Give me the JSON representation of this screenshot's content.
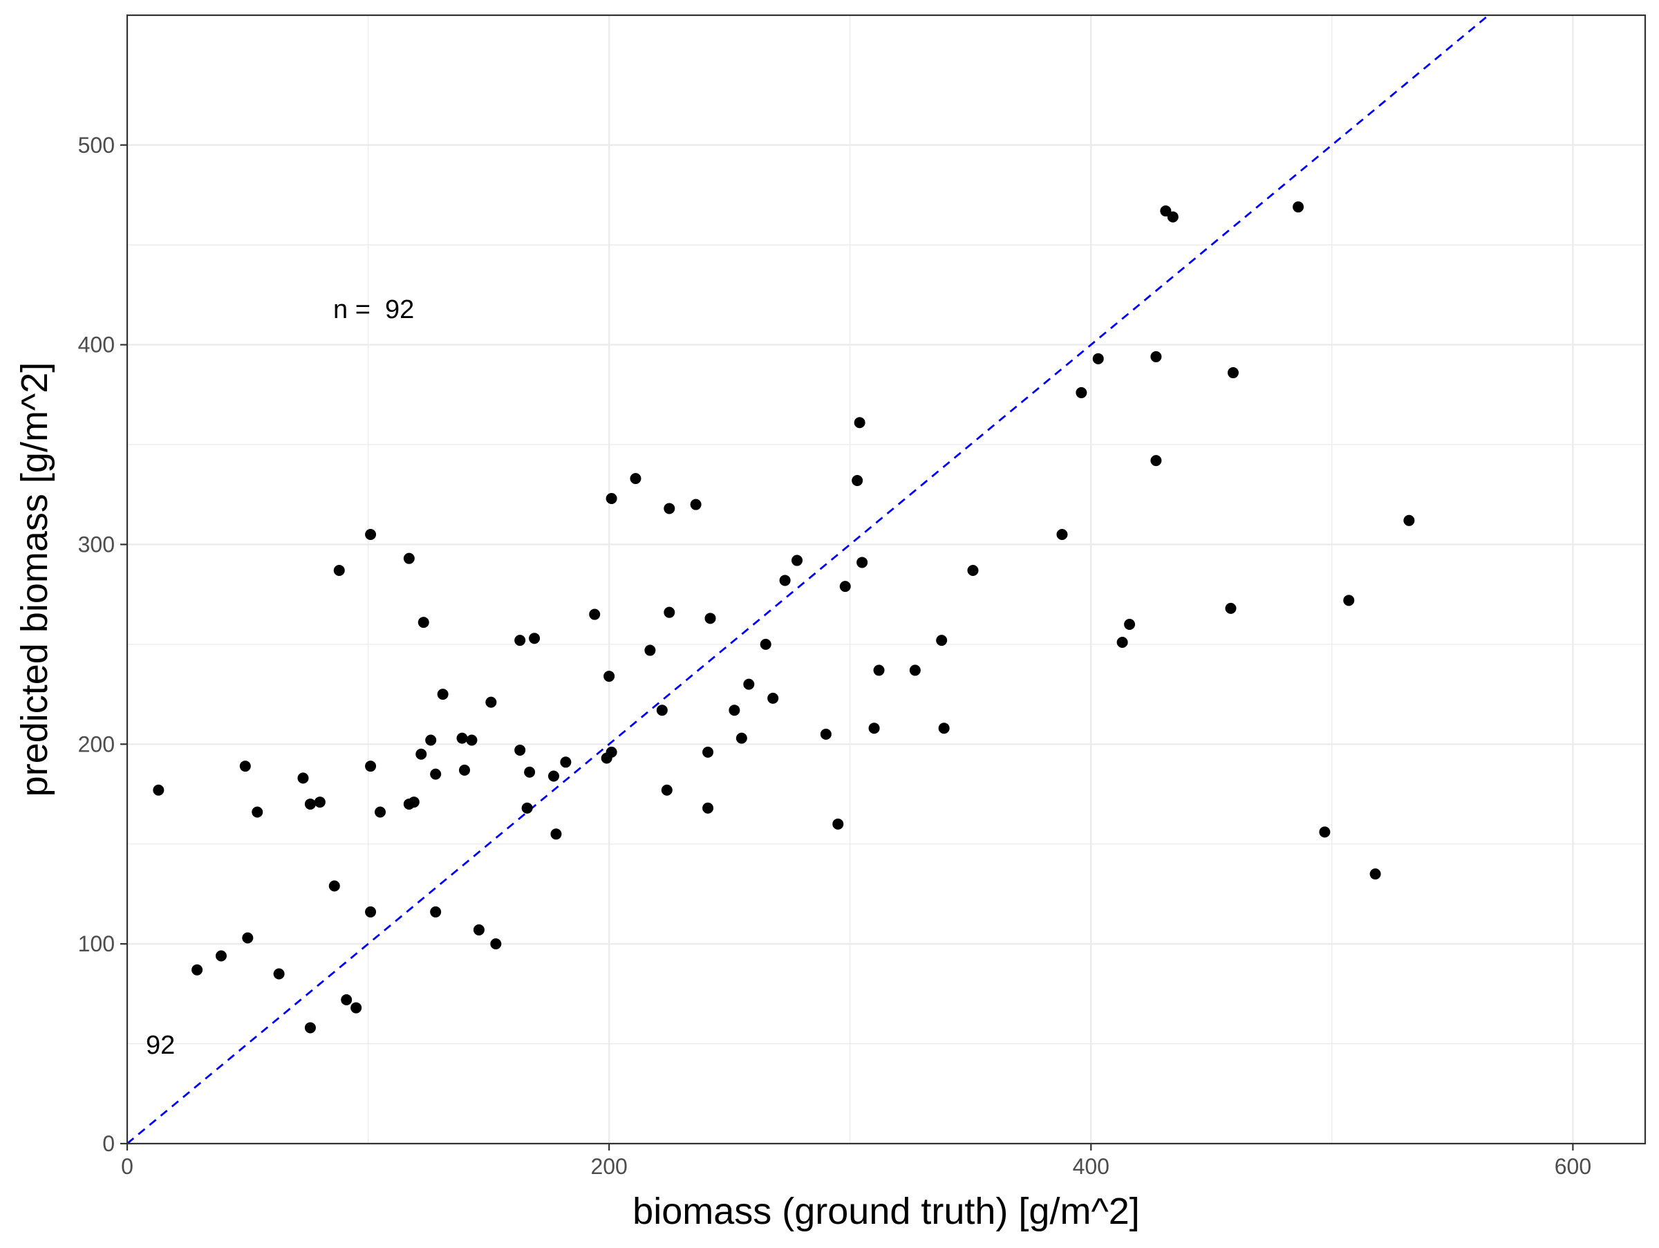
{
  "chart_data": {
    "type": "scatter",
    "title": "",
    "xlabel": "biomass (ground truth) [g/m^2]",
    "ylabel": "predicted biomass [g/m^2]",
    "xlim": [
      0,
      630
    ],
    "ylim": [
      0,
      565
    ],
    "x_ticks": [
      0,
      200,
      400,
      600
    ],
    "y_ticks": [
      0,
      100,
      200,
      300,
      400,
      500
    ],
    "x_minor_ticks": [
      100,
      300,
      500
    ],
    "y_minor_ticks": [
      50,
      150,
      250,
      350,
      450
    ],
    "x_tick_labels": [
      "0",
      "200",
      "400",
      "600"
    ],
    "y_tick_labels": [
      "0",
      "100",
      "200",
      "300",
      "400",
      "500"
    ],
    "grid": true,
    "annotations": [
      {
        "text": "n =  92",
        "x": 95,
        "y": 420
      },
      {
        "text": "92",
        "x": 16,
        "y": 50
      }
    ],
    "reference_line": {
      "type": "identity",
      "style": "dashed",
      "color": "#0000ff"
    },
    "colors": {
      "points": "#000000",
      "grid": "#ebebeb",
      "panel_border": "#333333",
      "reference_line": "#0000ff"
    },
    "series": [
      {
        "points": [
          [
            13,
            177
          ],
          [
            29,
            87
          ],
          [
            39,
            94
          ],
          [
            49,
            189
          ],
          [
            50,
            103
          ],
          [
            54,
            166
          ],
          [
            63,
            85
          ],
          [
            73,
            183
          ],
          [
            76,
            170
          ],
          [
            76,
            58
          ],
          [
            80,
            171
          ],
          [
            86,
            129
          ],
          [
            88,
            287
          ],
          [
            91,
            72
          ],
          [
            95,
            68
          ],
          [
            101,
            305
          ],
          [
            101,
            189
          ],
          [
            101,
            116
          ],
          [
            105,
            166
          ],
          [
            117,
            170
          ],
          [
            117,
            293
          ],
          [
            119,
            171
          ],
          [
            122,
            195
          ],
          [
            123,
            261
          ],
          [
            126,
            202
          ],
          [
            128,
            185
          ],
          [
            128,
            116
          ],
          [
            131,
            225
          ],
          [
            139,
            203
          ],
          [
            140,
            187
          ],
          [
            143,
            202
          ],
          [
            146,
            107
          ],
          [
            151,
            221
          ],
          [
            153,
            100
          ],
          [
            163,
            252
          ],
          [
            163,
            197
          ],
          [
            166,
            168
          ],
          [
            167,
            186
          ],
          [
            169,
            253
          ],
          [
            177,
            184
          ],
          [
            178,
            155
          ],
          [
            182,
            191
          ],
          [
            194,
            265
          ],
          [
            199,
            193
          ],
          [
            200,
            234
          ],
          [
            201,
            196
          ],
          [
            201,
            323
          ],
          [
            211,
            333
          ],
          [
            217,
            247
          ],
          [
            222,
            217
          ],
          [
            224,
            177
          ],
          [
            225,
            266
          ],
          [
            225,
            318
          ],
          [
            236,
            320
          ],
          [
            241,
            196
          ],
          [
            241,
            168
          ],
          [
            242,
            263
          ],
          [
            252,
            217
          ],
          [
            255,
            203
          ],
          [
            258,
            230
          ],
          [
            265,
            250
          ],
          [
            268,
            223
          ],
          [
            273,
            282
          ],
          [
            278,
            292
          ],
          [
            290,
            205
          ],
          [
            295,
            160
          ],
          [
            298,
            279
          ],
          [
            303,
            332
          ],
          [
            304,
            361
          ],
          [
            305,
            291
          ],
          [
            310,
            208
          ],
          [
            312,
            237
          ],
          [
            327,
            237
          ],
          [
            338,
            252
          ],
          [
            339,
            208
          ],
          [
            351,
            287
          ],
          [
            388,
            305
          ],
          [
            396,
            376
          ],
          [
            403,
            393
          ],
          [
            413,
            251
          ],
          [
            416,
            260
          ],
          [
            427,
            394
          ],
          [
            427,
            342
          ],
          [
            431,
            467
          ],
          [
            434,
            464
          ],
          [
            458,
            268
          ],
          [
            459,
            386
          ],
          [
            486,
            469
          ],
          [
            497,
            156
          ],
          [
            507,
            272
          ],
          [
            518,
            135
          ],
          [
            532,
            312
          ]
        ]
      }
    ]
  }
}
